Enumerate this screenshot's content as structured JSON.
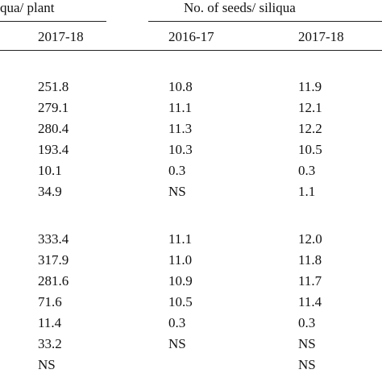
{
  "header": {
    "group_1": "qua/ plant",
    "group_2": "No. of seeds/ siliqua",
    "columns": [
      "2017-18",
      "2016-17",
      "2017-18"
    ]
  },
  "table": {
    "sections": [
      [
        [
          "251.8",
          "10.8",
          "11.9"
        ],
        [
          "279.1",
          "11.1",
          "12.1"
        ],
        [
          "280.4",
          "11.3",
          "12.2"
        ],
        [
          "193.4",
          "10.3",
          "10.5"
        ],
        [
          "10.1",
          "0.3",
          "0.3"
        ],
        [
          "34.9",
          "NS",
          "1.1"
        ]
      ],
      [
        [
          "333.4",
          "11.1",
          "12.0"
        ],
        [
          "317.9",
          "11.0",
          "11.8"
        ],
        [
          "281.6",
          "10.9",
          "11.7"
        ],
        [
          "71.6",
          "10.5",
          "11.4"
        ],
        [
          "11.4",
          "0.3",
          "0.3"
        ],
        [
          "33.2",
          "NS",
          "NS"
        ],
        [
          "NS",
          null,
          "NS"
        ]
      ]
    ]
  }
}
